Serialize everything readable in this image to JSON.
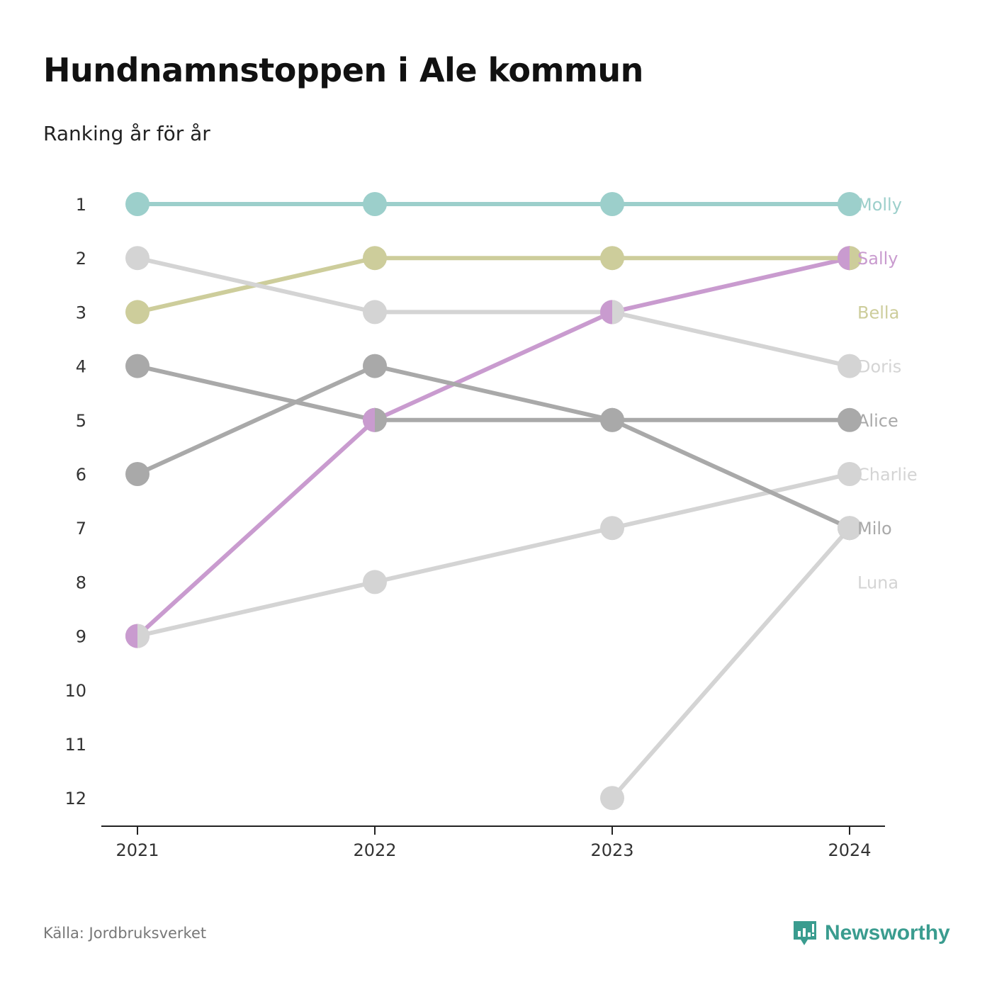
{
  "header": {
    "title": "Hundnamnstoppen i Ale kommun",
    "subtitle": "Ranking år för år"
  },
  "footer": {
    "source": "Källa: Jordbruksverket",
    "brand": "Newsworthy",
    "brand_icon": "newsworthy-logo-icon",
    "brand_color": "#3a9c8f"
  },
  "chart_data": {
    "type": "line",
    "title": "Hundnamnstoppen i Ale kommun",
    "subtitle": "Ranking år för år",
    "x": [
      "2021",
      "2022",
      "2023",
      "2024"
    ],
    "y_ticks": [
      1,
      2,
      3,
      4,
      5,
      6,
      7,
      8,
      9,
      10,
      11,
      12
    ],
    "ylim": [
      1,
      12
    ],
    "y_reversed": true,
    "grid": false,
    "legend": "direct labels at right end of lines",
    "series": [
      {
        "name": "Molly",
        "values": [
          1,
          1,
          1,
          1
        ],
        "color": "#9ccfcb"
      },
      {
        "name": "Sally",
        "values": [
          9,
          5,
          3,
          2
        ],
        "color": "#c99bcf"
      },
      {
        "name": "Bella",
        "values": [
          3,
          2,
          2,
          2
        ],
        "color": "#cdcd9b"
      },
      {
        "name": "Doris",
        "values": [
          2,
          3,
          3,
          4
        ],
        "color": "#d4d4d4"
      },
      {
        "name": "Alice",
        "values": [
          6,
          4,
          5,
          5
        ],
        "color": "#a9a9a9"
      },
      {
        "name": "Charlie",
        "values": [
          9,
          8,
          7,
          6
        ],
        "color": "#d4d4d4"
      },
      {
        "name": "Milo",
        "values": [
          4,
          5,
          5,
          7
        ],
        "color": "#a9a9a9"
      },
      {
        "name": "Luna",
        "values": [
          null,
          null,
          12,
          7
        ],
        "color": "#d4d4d4"
      }
    ],
    "label_ranks": {
      "Molly": 1,
      "Sally": 2,
      "Bella": 3,
      "Doris": 4,
      "Alice": 5,
      "Charlie": 6,
      "Milo": 7,
      "Luna": 8
    }
  }
}
